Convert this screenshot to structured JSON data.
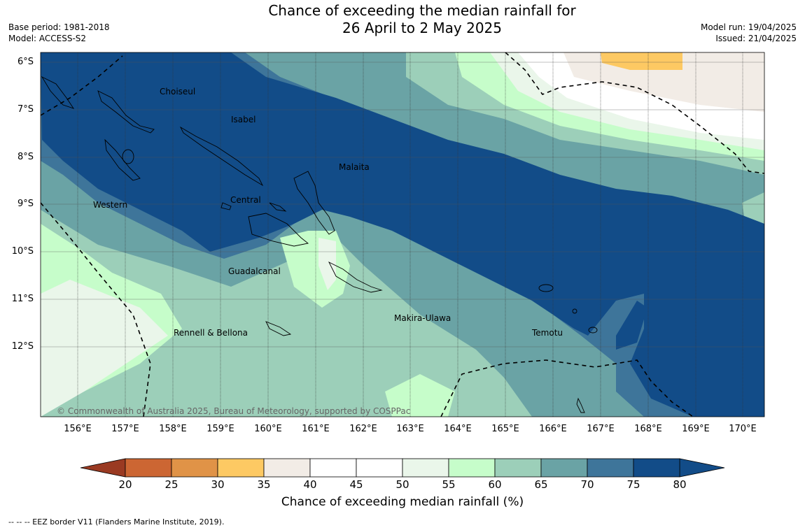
{
  "header": {
    "title_line1": "Chance of exceeding the median rainfall for",
    "title_line2": "26 April to 2 May 2025",
    "base_period": "Base period: 1981-2018",
    "model": "Model: ACCESS-S2",
    "model_run": "Model run: 19/04/2025",
    "issued": "Issued: 21/04/2025"
  },
  "map": {
    "lat_labels": [
      "6°S",
      "7°S",
      "8°S",
      "9°S",
      "10°S",
      "11°S",
      "12°S"
    ],
    "lon_labels": [
      "156°E",
      "157°E",
      "158°E",
      "159°E",
      "160°E",
      "161°E",
      "162°E",
      "163°E",
      "164°E",
      "165°E",
      "166°E",
      "167°E",
      "168°E",
      "169°E",
      "170°E"
    ],
    "places": {
      "choiseul": "Choiseul",
      "isabel": "Isabel",
      "malaita": "Malaita",
      "western": "Western",
      "central": "Central",
      "guadalcanal": "Guadalcanal",
      "makira": "Makira-Ulawa",
      "rennell": "Rennell & Bellona",
      "temotu": "Temotu"
    },
    "copyright": "© Commonwealth of Australia 2025, Bureau of Meteorology, supported by COSPPac"
  },
  "colorbar": {
    "title": "Chance of exceeding median rainfall (%)",
    "ticks": [
      "20",
      "25",
      "30",
      "35",
      "40",
      "45",
      "50",
      "55",
      "60",
      "65",
      "70",
      "75",
      "80"
    ],
    "colors": [
      "#b0452a",
      "#cc6633",
      "#e09347",
      "#fdc963",
      "#f2ece6",
      "#ffffff",
      "#ffffff",
      "#eaf6ea",
      "#c6fdca",
      "#9ccfb9",
      "#6aa3a5",
      "#3e759a",
      "#124c88"
    ]
  },
  "footer": {
    "eez_note": "--  --  -- EEZ border V11 (Flanders Marine Institute, 2019)."
  }
}
